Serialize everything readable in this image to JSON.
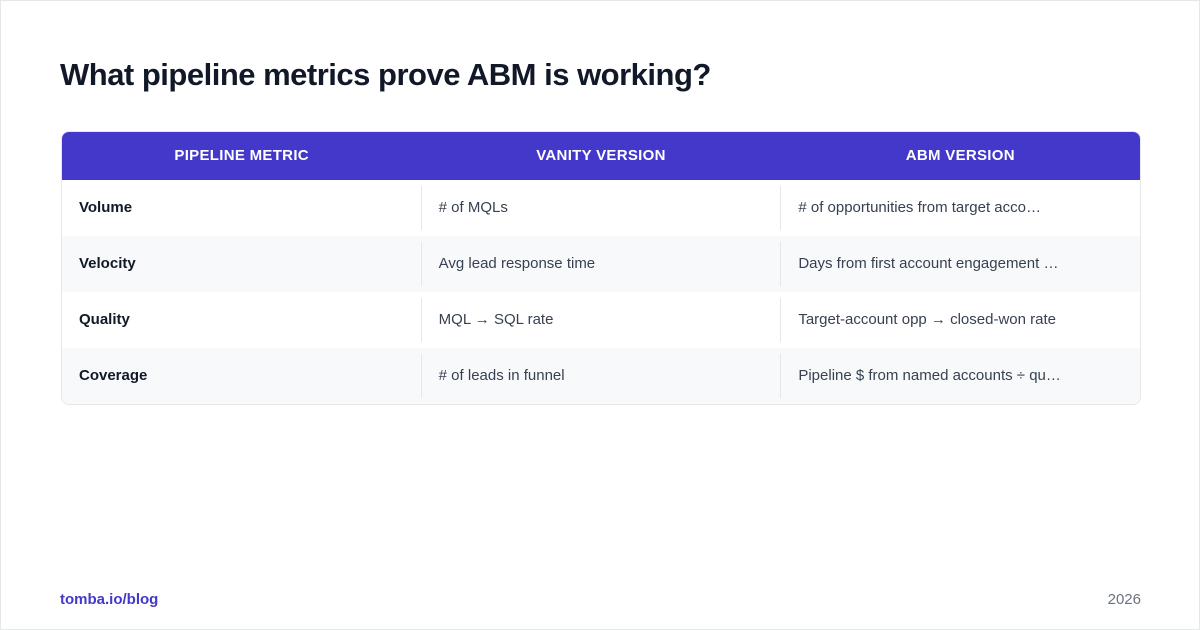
{
  "header": {
    "title": "What pipeline metrics prove ABM is working?"
  },
  "table": {
    "columns": [
      "PIPELINE METRIC",
      "VANITY VERSION",
      "ABM VERSION"
    ],
    "rows": [
      [
        "Volume",
        "# of MQLs",
        "# of opportunities from target acco…"
      ],
      [
        "Velocity",
        "Avg lead response time",
        "Days from first account engagement …"
      ],
      [
        "Quality",
        "MQL → SQL rate",
        "Target-account opp → closed-won rate"
      ],
      [
        "Coverage",
        "# of leads in funnel",
        "Pipeline $ from named accounts ÷ qu…"
      ]
    ]
  },
  "footer": {
    "source": "tomba.io/blog",
    "year": "2026"
  }
}
